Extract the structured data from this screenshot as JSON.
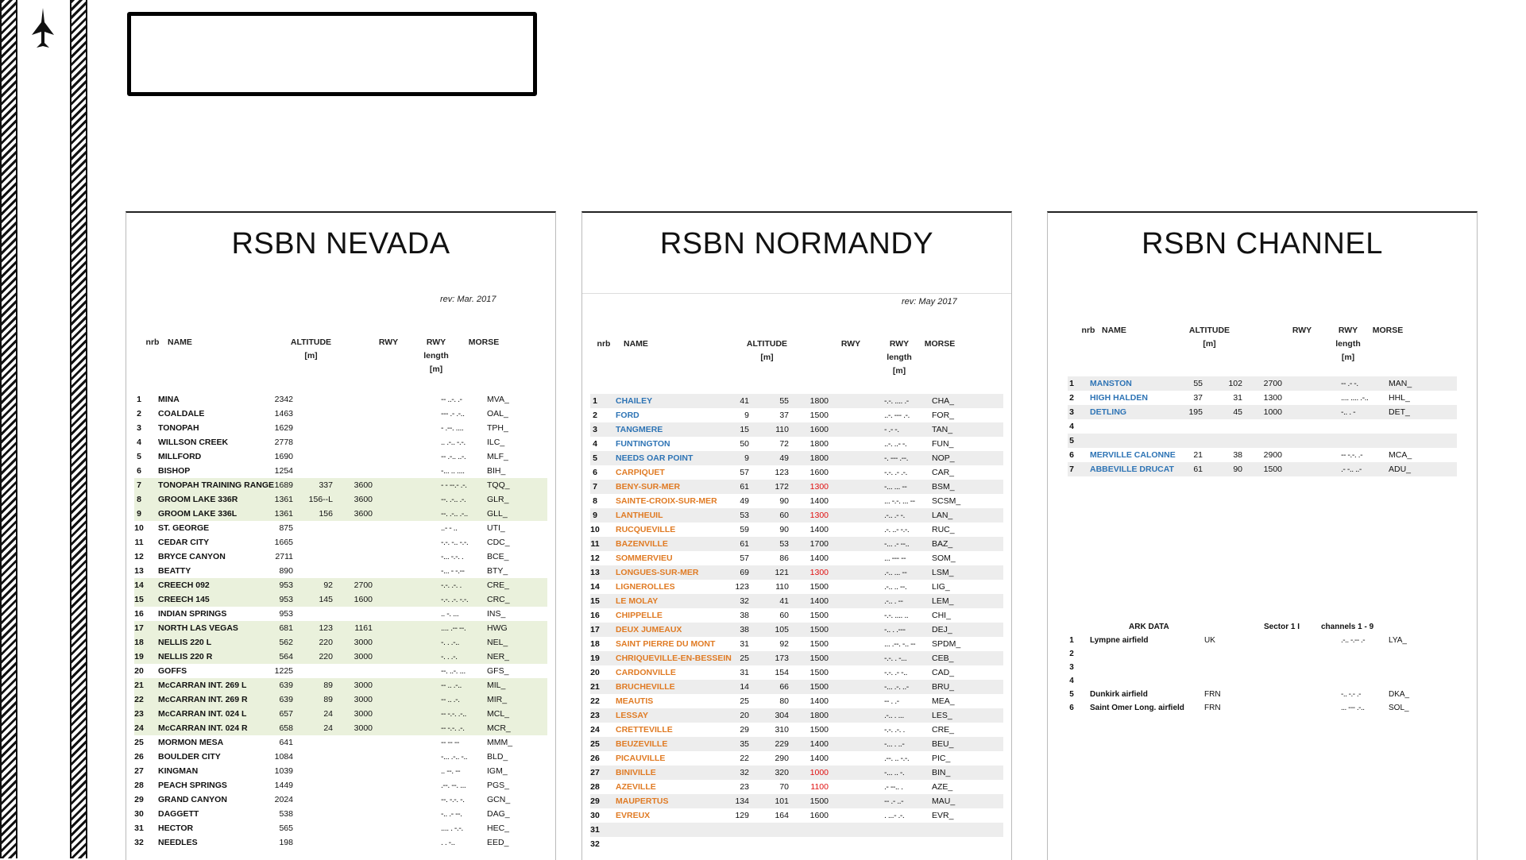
{
  "sheets": {
    "nevada": {
      "title": "RSBN NEVADA",
      "rev": "rev:  Mar. 2017",
      "headers": {
        "nrb": "nrb",
        "name": "NAME",
        "alt": "ALTITUDE\n[m]",
        "rwy": "RWY",
        "len": "RWY\nlength\n[m]",
        "morse": "MORSE"
      },
      "rows": [
        {
          "nrb": "1",
          "name": "MINA",
          "alt": "2342",
          "rwy": "",
          "len": "",
          "morse": "-- ..-. .-",
          "code": "MVA_"
        },
        {
          "nrb": "2",
          "name": "COALDALE",
          "alt": "1463",
          "rwy": "",
          "len": "",
          "morse": "--- .- .-..",
          "code": "OAL_"
        },
        {
          "nrb": "3",
          "name": "TONOPAH",
          "alt": "1629",
          "rwy": "",
          "len": "",
          "morse": "- .--. ....",
          "code": "TPH_"
        },
        {
          "nrb": "4",
          "name": "WILLSON CREEK",
          "alt": "2778",
          "rwy": "",
          "len": "",
          "morse": ".. .-.. -.-.",
          "code": "ILC_"
        },
        {
          "nrb": "5",
          "name": "MILLFORD",
          "alt": "1690",
          "rwy": "",
          "len": "",
          "morse": "-- .-.. ..-.",
          "code": "MLF_"
        },
        {
          "nrb": "6",
          "name": "BISHOP",
          "alt": "1254",
          "rwy": "",
          "len": "",
          "morse": "-... .. ....",
          "code": "BIH_"
        },
        {
          "nrb": "7",
          "name": "TONOPAH TRAINING RANGE",
          "alt": "1689",
          "rwy": "337",
          "len": "3600",
          "morse": "- - --.- .-.",
          "code": "TQQ_"
        },
        {
          "nrb": "8",
          "name": "GROOM LAKE 336R",
          "alt": "1361",
          "rwy": "156--L",
          "len": "3600",
          "morse": "--. .-.. .-.",
          "code": "GLR_"
        },
        {
          "nrb": "9",
          "name": "GROOM LAKE 336L",
          "alt": "1361",
          "rwy": "156",
          "len": "3600",
          "morse": "--. .-.. .-..",
          "code": "GLL_"
        },
        {
          "nrb": "10",
          "name": "ST. GEORGE",
          "alt": "875",
          "rwy": "",
          "len": "",
          "morse": "..- - ..",
          "code": "UTI_"
        },
        {
          "nrb": "11",
          "name": "CEDAR CITY",
          "alt": "1665",
          "rwy": "",
          "len": "",
          "morse": "-.-. -.. -.-.",
          "code": "CDC_"
        },
        {
          "nrb": "12",
          "name": "BRYCE CANYON",
          "alt": "2711",
          "rwy": "",
          "len": "",
          "morse": "-... -.-. .",
          "code": "BCE_"
        },
        {
          "nrb": "13",
          "name": "BEATTY",
          "alt": "890",
          "rwy": "",
          "len": "",
          "morse": "-... - -.--",
          "code": "BTY_"
        },
        {
          "nrb": "14",
          "name": "CREECH 092",
          "alt": "953",
          "rwy": "92",
          "len": "2700",
          "morse": "-.-. .-. .",
          "code": "CRE_"
        },
        {
          "nrb": "15",
          "name": "CREECH 145",
          "alt": "953",
          "rwy": "145",
          "len": "1600",
          "morse": "-.-. .-. -.-.",
          "code": "CRC_"
        },
        {
          "nrb": "16",
          "name": "INDIAN SPRINGS",
          "alt": "953",
          "rwy": "",
          "len": "",
          "morse": ".. -. ...",
          "code": "INS_"
        },
        {
          "nrb": "17",
          "name": "NORTH LAS VEGAS",
          "alt": "681",
          "rwy": "123",
          "len": "1161",
          "morse": ".... .-- --.",
          "code": "HWG"
        },
        {
          "nrb": "18",
          "name": "NELLIS 220 L",
          "alt": "562",
          "rwy": "220",
          "len": "3000",
          "morse": "-. . .-..",
          "code": "NEL_"
        },
        {
          "nrb": "19",
          "name": "NELLIS 220 R",
          "alt": "564",
          "rwy": "220",
          "len": "3000",
          "morse": "-. . .-.",
          "code": "NER_"
        },
        {
          "nrb": "20",
          "name": "GOFFS",
          "alt": "1225",
          "rwy": "",
          "len": "",
          "morse": "--. ..-. ...",
          "code": "GFS_"
        },
        {
          "nrb": "21",
          "name": "McCARRAN INT. 269 L",
          "alt": "639",
          "rwy": "89",
          "len": "3000",
          "morse": "-- .. .-..",
          "code": "MIL_"
        },
        {
          "nrb": "22",
          "name": "McCARRAN INT. 269 R",
          "alt": "639",
          "rwy": "89",
          "len": "3000",
          "morse": "-- .. .-.",
          "code": "MIR_"
        },
        {
          "nrb": "23",
          "name": "McCARRAN INT. 024 L",
          "alt": "657",
          "rwy": "24",
          "len": "3000",
          "morse": "-- -.-. .-..",
          "code": "MCL_"
        },
        {
          "nrb": "24",
          "name": "McCARRAN INT. 024 R",
          "alt": "658",
          "rwy": "24",
          "len": "3000",
          "morse": "-- -.-. .-.",
          "code": "MCR_"
        },
        {
          "nrb": "25",
          "name": "MORMON MESA",
          "alt": "641",
          "rwy": "",
          "len": "",
          "morse": "-- -- --",
          "code": "MMM_"
        },
        {
          "nrb": "26",
          "name": "BOULDER CITY",
          "alt": "1084",
          "rwy": "",
          "len": "",
          "morse": "-... .-.. -..",
          "code": "BLD_"
        },
        {
          "nrb": "27",
          "name": "KINGMAN",
          "alt": "1039",
          "rwy": "",
          "len": "",
          "morse": ".. --. --",
          "code": "IGM_"
        },
        {
          "nrb": "28",
          "name": "PEACH SPRINGS",
          "alt": "1449",
          "rwy": "",
          "len": "",
          "morse": ".--. --. ...",
          "code": "PGS_"
        },
        {
          "nrb": "29",
          "name": "GRAND CANYON",
          "alt": "2024",
          "rwy": "",
          "len": "",
          "morse": "--. -.-. -.",
          "code": "GCN_"
        },
        {
          "nrb": "30",
          "name": "DAGGETT",
          "alt": "538",
          "rwy": "",
          "len": "",
          "morse": "-.. .- --.",
          "code": "DAG_"
        },
        {
          "nrb": "31",
          "name": "HECTOR",
          "alt": "565",
          "rwy": "",
          "len": "",
          "morse": ".... . -.-.",
          "code": "HEC_"
        },
        {
          "nrb": "32",
          "name": "NEEDLES",
          "alt": "198",
          "rwy": "",
          "len": "",
          "morse": ". . -..",
          "code": "EED_"
        }
      ]
    },
    "normandy": {
      "title": "RSBN NORMANDY",
      "rev": "rev:  May 2017",
      "headers": {
        "nrb": "nrb",
        "name": "NAME",
        "alt": "ALTITUDE\n[m]",
        "rwy": "RWY",
        "len": "RWY\nlength\n[m]",
        "morse": "MORSE"
      },
      "rows": [
        {
          "nrb": "1",
          "name": "CHAILEY",
          "alt": "41",
          "rwy": "55",
          "len": "1800",
          "morse": "-.-. .... .-",
          "code": "CHA_",
          "color": "blue"
        },
        {
          "nrb": "2",
          "name": "FORD",
          "alt": "9",
          "rwy": "37",
          "len": "1500",
          "morse": "..-. --- .-.",
          "code": "FOR_",
          "color": "blue"
        },
        {
          "nrb": "3",
          "name": "TANGMERE",
          "alt": "15",
          "rwy": "110",
          "len": "1600",
          "morse": "- .- -.",
          "code": "TAN_",
          "color": "blue"
        },
        {
          "nrb": "4",
          "name": "FUNTINGTON",
          "alt": "50",
          "rwy": "72",
          "len": "1800",
          "morse": "..-. ..- -.",
          "code": "FUN_",
          "color": "blue"
        },
        {
          "nrb": "5",
          "name": "NEEDS OAR POINT",
          "alt": "9",
          "rwy": "49",
          "len": "1800",
          "morse": "-. --- .--.",
          "code": "NOP_",
          "color": "blue"
        },
        {
          "nrb": "6",
          "name": "CARPIQUET",
          "alt": "57",
          "rwy": "123",
          "len": "1600",
          "morse": "-.-. .- .-.",
          "code": "CAR_",
          "color": "orange"
        },
        {
          "nrb": "7",
          "name": "BENY-SUR-MER",
          "alt": "61",
          "rwy": "172",
          "len": "1300",
          "morse": "-... ... --",
          "code": "BSM_",
          "color": "orange",
          "lenRed": true
        },
        {
          "nrb": "8",
          "name": "SAINTE-CROIX-SUR-MER",
          "alt": "49",
          "rwy": "90",
          "len": "1400",
          "morse": "... -.-. ... --",
          "code": "SCSM_",
          "color": "orange"
        },
        {
          "nrb": "9",
          "name": "LANTHEUIL",
          "alt": "53",
          "rwy": "60",
          "len": "1300",
          "morse": ".-.. .- -.",
          "code": "LAN_",
          "color": "orange",
          "lenRed": true
        },
        {
          "nrb": "10",
          "name": "RUCQUEVILLE",
          "alt": "59",
          "rwy": "90",
          "len": "1400",
          "morse": ".-. ..- -.-.",
          "code": "RUC_",
          "color": "orange"
        },
        {
          "nrb": "11",
          "name": "BAZENVILLE",
          "alt": "61",
          "rwy": "53",
          "len": "1700",
          "morse": "-... .- --..",
          "code": "BAZ_",
          "color": "orange"
        },
        {
          "nrb": "12",
          "name": "SOMMERVIEU",
          "alt": "57",
          "rwy": "86",
          "len": "1400",
          "morse": "... --- --",
          "code": "SOM_",
          "color": "orange"
        },
        {
          "nrb": "13",
          "name": "LONGUES-SUR-MER",
          "alt": "69",
          "rwy": "121",
          "len": "1300",
          "morse": ".-.. ... --",
          "code": "LSM_",
          "color": "orange",
          "lenRed": true
        },
        {
          "nrb": "14",
          "name": "LIGNEROLLES",
          "alt": "123",
          "rwy": "110",
          "len": "1500",
          "morse": ".-.. .. --.",
          "code": "LIG_",
          "color": "orange"
        },
        {
          "nrb": "15",
          "name": "LE MOLAY",
          "alt": "32",
          "rwy": "41",
          "len": "1400",
          "morse": ".-.. . --",
          "code": "LEM_",
          "color": "orange"
        },
        {
          "nrb": "16",
          "name": "CHIPPELLE",
          "alt": "38",
          "rwy": "60",
          "len": "1500",
          "morse": "-.-. .... ..",
          "code": "CHI_",
          "color": "orange"
        },
        {
          "nrb": "17",
          "name": "DEUX JUMEAUX",
          "alt": "38",
          "rwy": "105",
          "len": "1500",
          "morse": "-.. . .---",
          "code": "DEJ_",
          "color": "orange"
        },
        {
          "nrb": "18",
          "name": "SAINT PIERRE DU MONT",
          "alt": "31",
          "rwy": "92",
          "len": "1500",
          "morse": "... .--. -.. --",
          "code": "SPDM_",
          "color": "orange"
        },
        {
          "nrb": "19",
          "name": "CHRIQUEVILLE-EN-BESSEIN",
          "alt": "25",
          "rwy": "173",
          "len": "1500",
          "morse": "-.-. . -...",
          "code": "CEB_",
          "color": "orange"
        },
        {
          "nrb": "20",
          "name": "CARDONVILLE",
          "alt": "31",
          "rwy": "154",
          "len": "1500",
          "morse": "-.-. .- -..",
          "code": "CAD_",
          "color": "orange"
        },
        {
          "nrb": "21",
          "name": "BRUCHEVILLE",
          "alt": "14",
          "rwy": "66",
          "len": "1500",
          "morse": "-... .-. ..-",
          "code": "BRU_",
          "color": "orange"
        },
        {
          "nrb": "22",
          "name": "MEAUTIS",
          "alt": "25",
          "rwy": "80",
          "len": "1400",
          "morse": "-- . .-",
          "code": "MEA_",
          "color": "orange"
        },
        {
          "nrb": "23",
          "name": "LESSAY",
          "alt": "20",
          "rwy": "304",
          "len": "1800",
          "morse": ".-.. . ...",
          "code": "LES_",
          "color": "orange"
        },
        {
          "nrb": "24",
          "name": "CRETTEVILLE",
          "alt": "29",
          "rwy": "310",
          "len": "1500",
          "morse": "-.-. .-. .",
          "code": "CRE_",
          "color": "orange"
        },
        {
          "nrb": "25",
          "name": "BEUZEVILLE",
          "alt": "35",
          "rwy": "229",
          "len": "1400",
          "morse": "-... . ..-",
          "code": "BEU_",
          "color": "orange"
        },
        {
          "nrb": "26",
          "name": "PICAUVILLE",
          "alt": "22",
          "rwy": "290",
          "len": "1400",
          "morse": ".--. .. -.-.",
          "code": "PIC_",
          "color": "orange"
        },
        {
          "nrb": "27",
          "name": "BINIVILLE",
          "alt": "32",
          "rwy": "320",
          "len": "1000",
          "morse": "-... .. -.",
          "code": "BIN_",
          "color": "orange",
          "lenRed": true
        },
        {
          "nrb": "28",
          "name": "AZEVILLE",
          "alt": "23",
          "rwy": "70",
          "len": "1100",
          "morse": ".- --.. .",
          "code": "AZE_",
          "color": "orange",
          "lenRed": true
        },
        {
          "nrb": "29",
          "name": "MAUPERTUS",
          "alt": "134",
          "rwy": "101",
          "len": "1500",
          "morse": "-- .- ..-",
          "code": "MAU_",
          "color": "orange"
        },
        {
          "nrb": "30",
          "name": "EVREUX",
          "alt": "129",
          "rwy": "164",
          "len": "1600",
          "morse": ". ...- .-.",
          "code": "EVR_",
          "color": "orange"
        },
        {
          "nrb": "31",
          "name": "",
          "alt": "",
          "rwy": "",
          "len": "",
          "morse": "",
          "code": ""
        },
        {
          "nrb": "32",
          "name": "",
          "alt": "",
          "rwy": "",
          "len": "",
          "morse": "",
          "code": ""
        }
      ]
    },
    "channel": {
      "title": "RSBN CHANNEL",
      "headers": {
        "nrb": "nrb",
        "name": "NAME",
        "alt": "ALTITUDE\n[m]",
        "rwy": "RWY",
        "len": "RWY\nlength\n[m]",
        "morse": "MORSE"
      },
      "rows": [
        {
          "nrb": "1",
          "name": "MANSTON",
          "alt": "55",
          "rwy": "102",
          "len": "2700",
          "morse": "-- .- -.",
          "code": "MAN_",
          "color": "blue"
        },
        {
          "nrb": "2",
          "name": "HIGH HALDEN",
          "alt": "37",
          "rwy": "31",
          "len": "1300",
          "morse": ".... .... .-..",
          "code": "HHL_",
          "color": "blue"
        },
        {
          "nrb": "3",
          "name": "DETLING",
          "alt": "195",
          "rwy": "45",
          "len": "1000",
          "morse": "-.. . -",
          "code": "DET_",
          "color": "blue"
        },
        {
          "nrb": "4",
          "name": "",
          "alt": "",
          "rwy": "",
          "len": "",
          "morse": "",
          "code": ""
        },
        {
          "nrb": "5",
          "name": "",
          "alt": "",
          "rwy": "",
          "len": "",
          "morse": "",
          "code": ""
        },
        {
          "nrb": "6",
          "name": "MERVILLE CALONNE",
          "alt": "21",
          "rwy": "38",
          "len": "2900",
          "morse": "-- -.-. .-",
          "code": "MCA_",
          "color": "blue"
        },
        {
          "nrb": "7",
          "name": "ABBEVILLE DRUCAT",
          "alt": "61",
          "rwy": "90",
          "len": "1500",
          "morse": ".- -.. ..-",
          "code": "ADU_",
          "color": "blue"
        }
      ],
      "ark": {
        "title": "ARK DATA",
        "sector": "Sector 1 I",
        "channels": "channels 1 - 9",
        "rows": [
          {
            "nrb": "1",
            "name": "Lympne airfield",
            "country": "UK",
            "morse": ".-.. -.-- .-",
            "code": "LYA_"
          },
          {
            "nrb": "2",
            "name": "",
            "country": "",
            "morse": "",
            "code": ""
          },
          {
            "nrb": "3",
            "name": "",
            "country": "",
            "morse": "",
            "code": ""
          },
          {
            "nrb": "4",
            "name": "",
            "country": "",
            "morse": "",
            "code": ""
          },
          {
            "nrb": "5",
            "name": "Dunkirk airfield",
            "country": "FRN",
            "morse": "-.. -.- .-",
            "code": "DKA_"
          },
          {
            "nrb": "6",
            "name": "Saint Omer Long. airfield",
            "country": "FRN",
            "morse": "... --- .-..",
            "code": "SOL_"
          }
        ]
      }
    }
  }
}
